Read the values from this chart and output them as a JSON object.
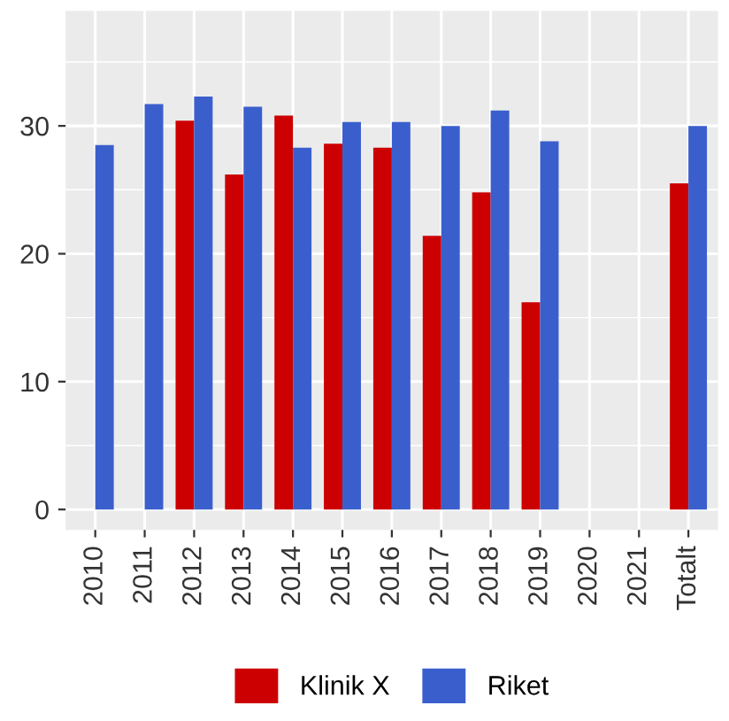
{
  "chart_data": {
    "type": "bar",
    "categories": [
      "2010",
      "2011",
      "2012",
      "2013",
      "2014",
      "2015",
      "2016",
      "2017",
      "2018",
      "2019",
      "2020",
      "2021",
      "Totalt"
    ],
    "series": [
      {
        "name": "Klinik X",
        "color": "#cc0000",
        "values": [
          null,
          null,
          30.4,
          26.2,
          30.8,
          28.6,
          28.3,
          21.4,
          24.8,
          16.2,
          null,
          null,
          25.5
        ]
      },
      {
        "name": "Riket",
        "color": "#3a5fcd",
        "values": [
          28.5,
          31.7,
          32.3,
          31.5,
          28.3,
          30.3,
          30.3,
          30.0,
          31.2,
          28.8,
          null,
          null,
          30.0
        ]
      }
    ],
    "ylim": [
      -1.6,
      39
    ],
    "yticks": [
      0,
      10,
      20,
      30
    ],
    "grid": true,
    "legend": "bottom"
  }
}
